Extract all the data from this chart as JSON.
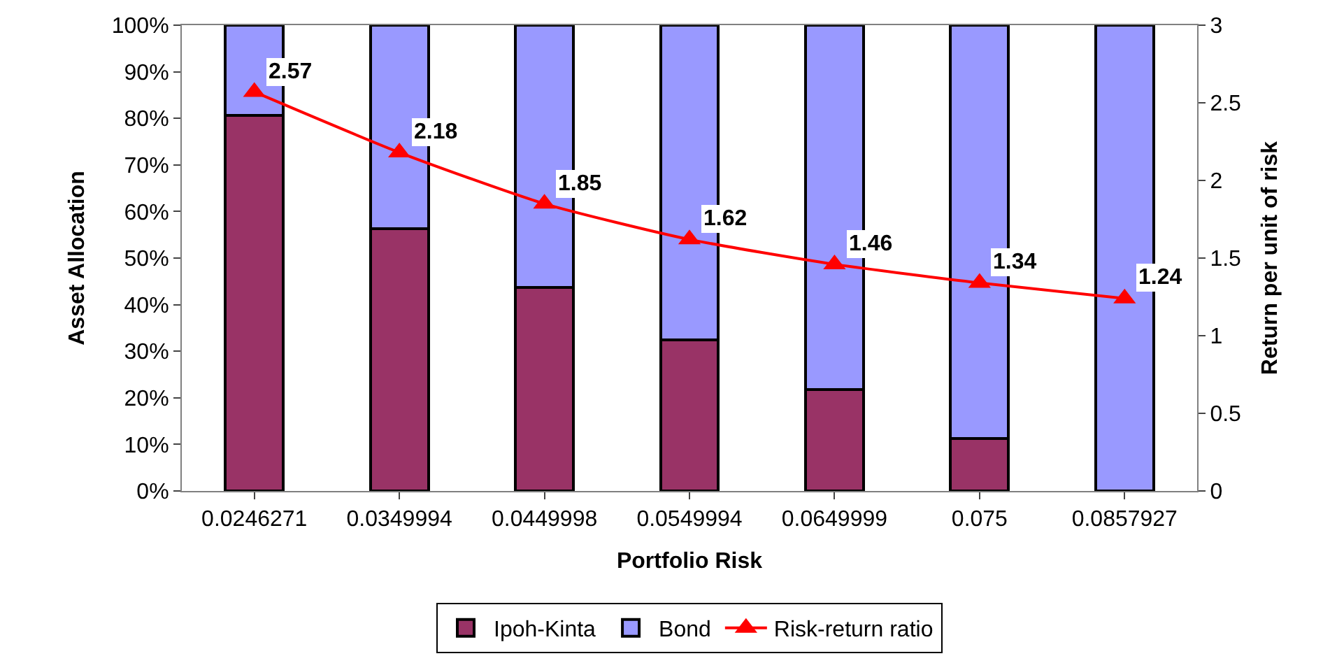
{
  "chart_data": {
    "type": "bar",
    "stacked": true,
    "xlabel": "Portfolio Risk",
    "ylabel": "Asset Allocation",
    "y2label": "Return per unit of risk",
    "categories": [
      "0.0246271",
      "0.0349994",
      "0.0449998",
      "0.0549994",
      "0.0649999",
      "0.075",
      "0.0857927"
    ],
    "series": [
      {
        "name": "Ipoh-Kinta",
        "color": "#993366",
        "values": [
          80.7,
          56.3,
          43.7,
          32.5,
          21.7,
          11.2,
          0
        ]
      },
      {
        "name": "Bond",
        "color": "#9999ff",
        "values": [
          19.3,
          43.7,
          56.3,
          67.5,
          78.3,
          88.8,
          100
        ]
      },
      {
        "name": "Risk-return ratio",
        "type": "line",
        "axis": "y2",
        "color": "#ff0000",
        "marker": "triangle",
        "values": [
          2.57,
          2.18,
          1.85,
          1.62,
          1.46,
          1.34,
          1.24
        ],
        "value_labels": [
          "2.57",
          "2.18",
          "1.85",
          "1.62",
          "1.46",
          "1.34",
          "1.24"
        ]
      }
    ],
    "ylim": [
      0,
      100
    ],
    "yticks": [
      {
        "value": 0,
        "label": "0%"
      },
      {
        "value": 10,
        "label": "10%"
      },
      {
        "value": 20,
        "label": "20%"
      },
      {
        "value": 30,
        "label": "30%"
      },
      {
        "value": 40,
        "label": "40%"
      },
      {
        "value": 50,
        "label": "50%"
      },
      {
        "value": 60,
        "label": "60%"
      },
      {
        "value": 70,
        "label": "70%"
      },
      {
        "value": 80,
        "label": "80%"
      },
      {
        "value": 90,
        "label": "90%"
      },
      {
        "value": 100,
        "label": "100%"
      }
    ],
    "y2lim": [
      0,
      3
    ],
    "y2ticks": [
      0,
      0.5,
      1,
      1.5,
      2,
      2.5,
      3
    ],
    "legend": "bottom"
  }
}
